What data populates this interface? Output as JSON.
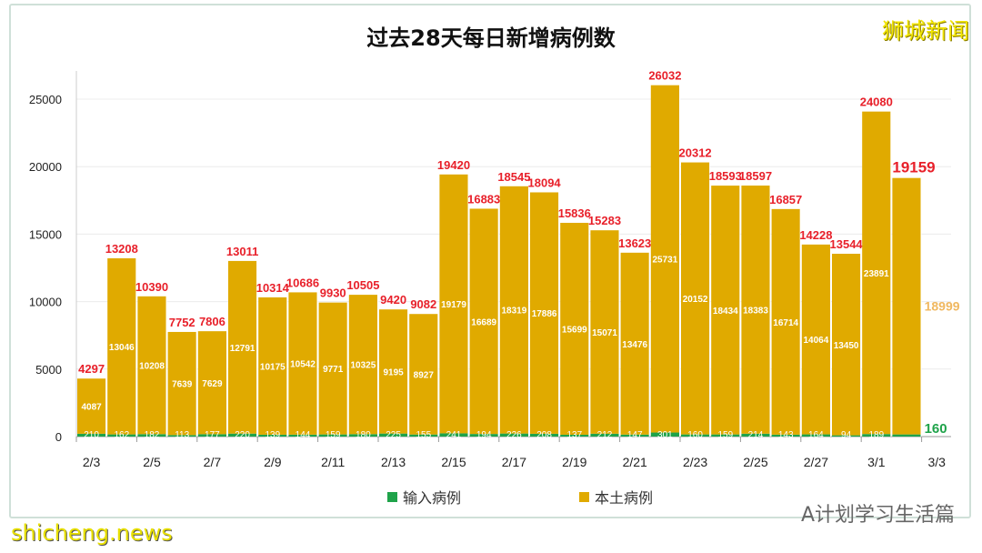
{
  "chart_data": {
    "type": "bar",
    "stacked": true,
    "title": "过去28天每日新增病例数",
    "categories": [
      "2/3",
      "2/4",
      "2/5",
      "2/6",
      "2/7",
      "2/8",
      "2/9",
      "2/10",
      "2/11",
      "2/12",
      "2/13",
      "2/14",
      "2/15",
      "2/16",
      "2/17",
      "2/18",
      "2/19",
      "2/20",
      "2/21",
      "2/22",
      "2/23",
      "2/24",
      "2/25",
      "2/26",
      "2/27",
      "2/28",
      "3/1",
      "3/2"
    ],
    "x_tick_labels": [
      "2/3",
      "2/5",
      "2/7",
      "2/9",
      "2/11",
      "2/13",
      "2/15",
      "2/17",
      "2/19",
      "2/21",
      "2/23",
      "2/25",
      "2/27",
      "3/1",
      "3/3"
    ],
    "series": [
      {
        "name": "输入病例",
        "color": "#1fa34a",
        "values": [
          210,
          162,
          182,
          113,
          177,
          220,
          139,
          144,
          159,
          180,
          225,
          155,
          241,
          194,
          226,
          208,
          137,
          212,
          147,
          301,
          160,
          159,
          214,
          143,
          164,
          94,
          189,
          160
        ]
      },
      {
        "name": "本土病例",
        "color": "#e0aa00",
        "values": [
          4087,
          13046,
          10208,
          7639,
          7629,
          12791,
          10175,
          10542,
          9771,
          10325,
          9195,
          8927,
          19179,
          16689,
          18319,
          17886,
          15699,
          15071,
          13476,
          25731,
          20152,
          18434,
          18383,
          16714,
          14064,
          13450,
          23891,
          18999
        ]
      }
    ],
    "totals": [
      4297,
      13208,
      10390,
      7752,
      7806,
      13011,
      10314,
      10686,
      9930,
      10505,
      9420,
      9082,
      19420,
      16883,
      18545,
      18094,
      15836,
      15283,
      13623,
      26032,
      20312,
      18593,
      18597,
      16857,
      14228,
      13544,
      24080,
      19159
    ],
    "y_ticks": [
      0,
      5000,
      10000,
      15000,
      20000,
      25000
    ],
    "ylim": [
      0,
      27500
    ],
    "grid": true,
    "legend_position": "bottom",
    "total_label_color": "#e8202a"
  },
  "watermarks": {
    "top_right": "狮城新闻",
    "bottom_right": "A计划学习生活篇",
    "bottom_left": "shicheng.news"
  }
}
